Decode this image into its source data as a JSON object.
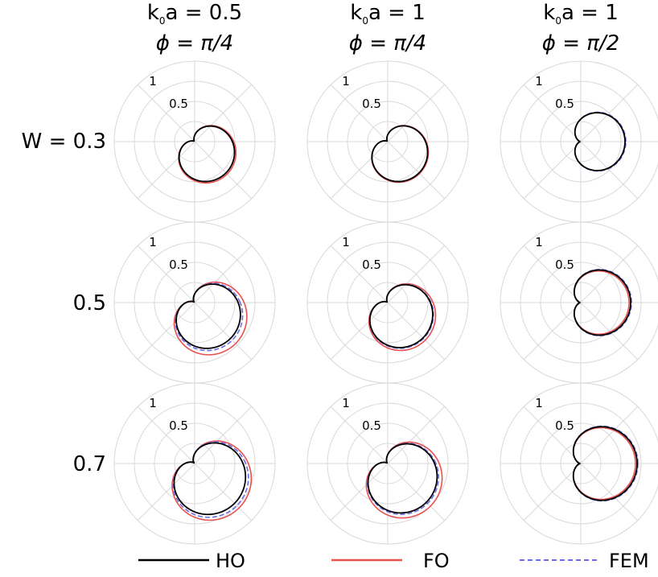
{
  "columns": [
    {
      "line1_main": "k",
      "line1_sub": "0",
      "line1_rest": "a = 0.5",
      "line2": "ϕ = π/4"
    },
    {
      "line1_main": "k",
      "line1_sub": "0",
      "line1_rest": "a = 1",
      "line2": "ϕ = π/4"
    },
    {
      "line1_main": "k",
      "line1_sub": "0",
      "line1_rest": "a = 1",
      "line2": "ϕ = π/2"
    }
  ],
  "rows": [
    {
      "label": "W = 0.3"
    },
    {
      "label": "0.5"
    },
    {
      "label": "0.7"
    }
  ],
  "radial_ticks": [
    "1",
    "0.5"
  ],
  "legend": {
    "ho": "HO",
    "fo": "FO",
    "fem": "FEM"
  },
  "colors": {
    "ho": "#000000",
    "fo": "#e8514f",
    "fem": "#6b6be8",
    "grid": "#d9d9d9"
  },
  "chart_data": {
    "type": "polar-line",
    "rlim": [
      0,
      1
    ],
    "r_ticks": [
      0.5,
      1
    ],
    "angular_grid_deg": [
      0,
      45,
      90,
      135,
      180,
      225,
      270,
      315
    ],
    "grid": true,
    "legend_placement": "bottom",
    "series_names": [
      "HO",
      "FO",
      "FEM"
    ],
    "panels": [
      {
        "row": 0,
        "col": 0,
        "ho": {
          "a": 0.55,
          "b": 0.45,
          "peak_deg": -45
        },
        "fo": {
          "a": 0.57,
          "b": 0.46,
          "peak_deg": -45
        },
        "fem": {
          "a": 0.55,
          "b": 0.45,
          "peak_deg": -45
        }
      },
      {
        "row": 0,
        "col": 1,
        "ho": {
          "a": 0.55,
          "b": 0.48,
          "peak_deg": -45
        },
        "fo": {
          "a": 0.56,
          "b": 0.49,
          "peak_deg": -45
        },
        "fem": {
          "a": 0.55,
          "b": 0.48,
          "peak_deg": -45
        }
      },
      {
        "row": 0,
        "col": 2,
        "ho": {
          "a": 0.55,
          "b": 0.5,
          "peak_deg": 0
        },
        "fo": {
          "a": 0.55,
          "b": 0.5,
          "peak_deg": 0
        },
        "fem": {
          "a": 0.56,
          "b": 0.5,
          "peak_deg": 0
        }
      },
      {
        "row": 1,
        "col": 0,
        "ho": {
          "a": 0.63,
          "b": 0.6,
          "peak_deg": -45
        },
        "fo": {
          "a": 0.72,
          "b": 0.6,
          "peak_deg": -45
        },
        "fem": {
          "a": 0.66,
          "b": 0.62,
          "peak_deg": -45
        }
      },
      {
        "row": 1,
        "col": 1,
        "ho": {
          "a": 0.62,
          "b": 0.55,
          "peak_deg": -45
        },
        "fo": {
          "a": 0.66,
          "b": 0.56,
          "peak_deg": -45
        },
        "fem": {
          "a": 0.63,
          "b": 0.56,
          "peak_deg": -45
        }
      },
      {
        "row": 1,
        "col": 2,
        "ho": {
          "a": 0.62,
          "b": 0.56,
          "peak_deg": 0
        },
        "fo": {
          "a": 0.6,
          "b": 0.56,
          "peak_deg": 0
        },
        "fem": {
          "a": 0.63,
          "b": 0.57,
          "peak_deg": 0
        }
      },
      {
        "row": 2,
        "col": 0,
        "ho": {
          "a": 0.7,
          "b": 0.68,
          "peak_deg": -45
        },
        "fo": {
          "a": 0.78,
          "b": 0.7,
          "peak_deg": -45
        },
        "fem": {
          "a": 0.74,
          "b": 0.7,
          "peak_deg": -45
        }
      },
      {
        "row": 2,
        "col": 1,
        "ho": {
          "a": 0.68,
          "b": 0.62,
          "peak_deg": -45
        },
        "fo": {
          "a": 0.75,
          "b": 0.64,
          "peak_deg": -45
        },
        "fem": {
          "a": 0.7,
          "b": 0.63,
          "peak_deg": -45
        }
      },
      {
        "row": 2,
        "col": 2,
        "ho": {
          "a": 0.7,
          "b": 0.64,
          "peak_deg": 0
        },
        "fo": {
          "a": 0.68,
          "b": 0.64,
          "peak_deg": 0
        },
        "fem": {
          "a": 0.71,
          "b": 0.65,
          "peak_deg": 0
        }
      }
    ]
  }
}
